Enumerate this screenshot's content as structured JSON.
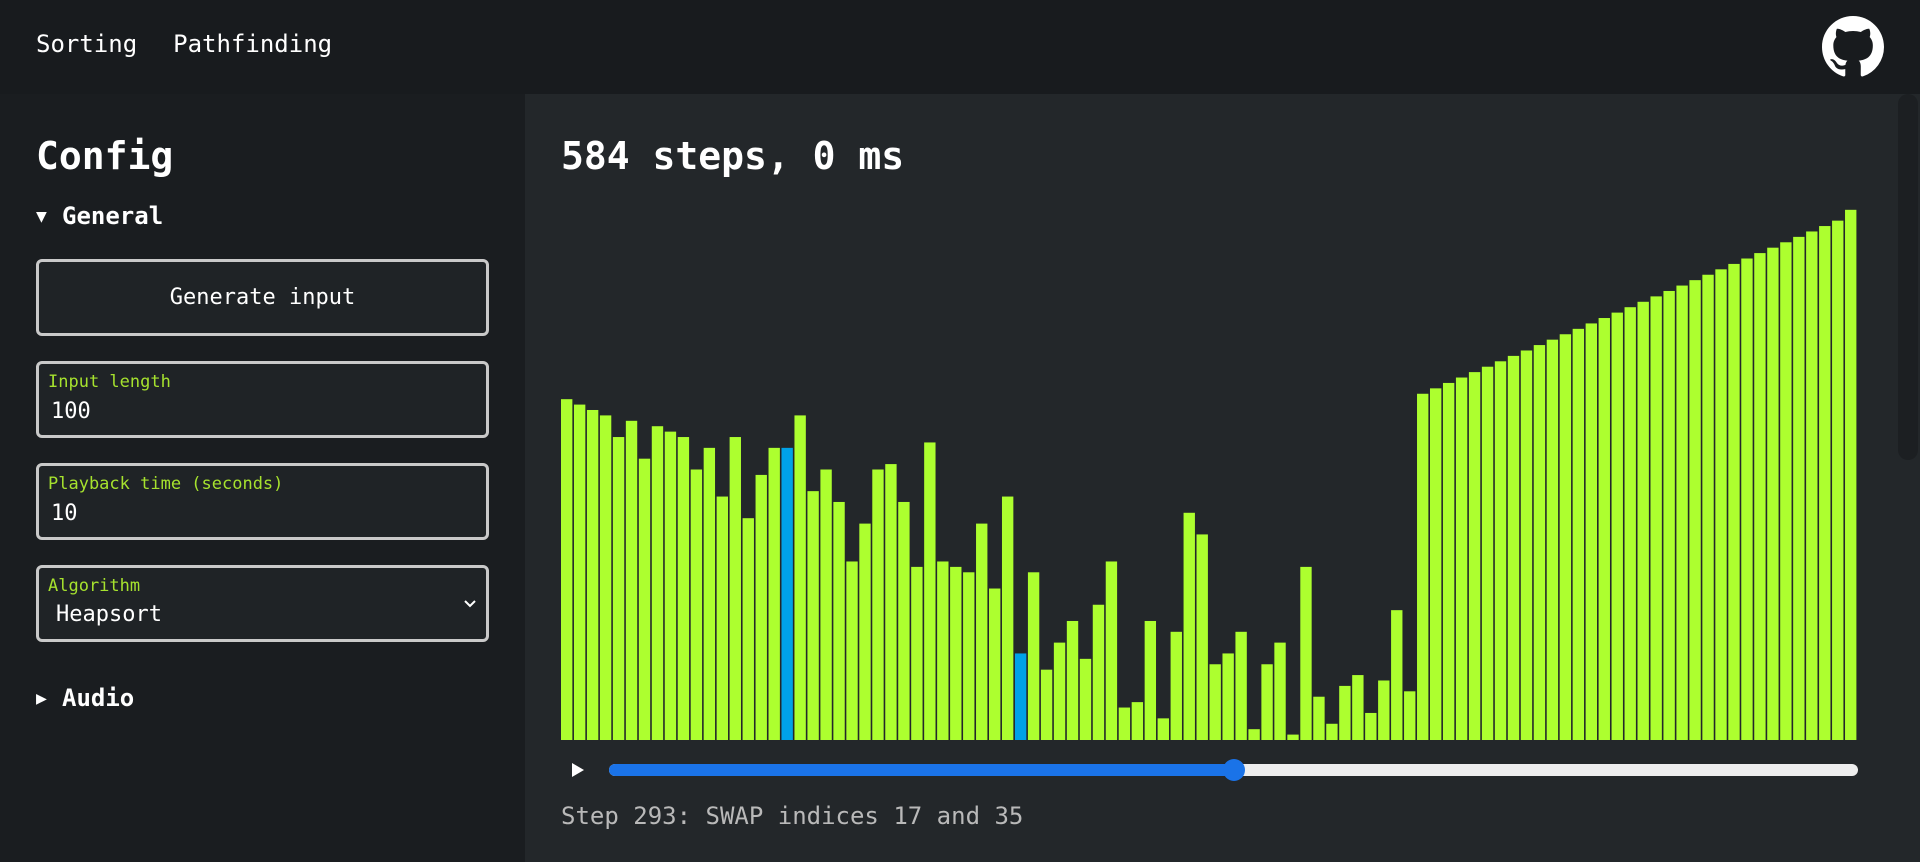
{
  "nav": {
    "items": [
      "Sorting",
      "Pathfinding"
    ],
    "github_icon": "github-icon"
  },
  "sidebar": {
    "title": "Config",
    "general_label": "General",
    "general_expanded": true,
    "generate_button": "Generate input",
    "fields": [
      {
        "label": "Input length",
        "value": "100"
      },
      {
        "label": "Playback time (seconds)",
        "value": "10"
      }
    ],
    "algorithm": {
      "label": "Algorithm",
      "value": "Heapsort"
    },
    "audio_label": "Audio",
    "audio_expanded": false
  },
  "main": {
    "title": "584 steps, 0 ms",
    "status": "Step 293: SWAP indices 17 and 35",
    "progress": 0.5
  },
  "colors": {
    "bar": "#adff2f",
    "highlight": "#00a2e8",
    "accent": "#1a73e8",
    "label": "#a6e22e"
  },
  "chart_data": {
    "type": "bar",
    "highlighted_indices": [
      17,
      35
    ],
    "values": [
      63,
      62,
      61,
      60,
      56,
      59,
      52,
      58,
      57,
      56,
      50,
      54,
      45,
      56,
      41,
      49,
      54,
      54,
      60,
      46,
      50,
      44,
      33,
      40,
      50,
      51,
      44,
      32,
      55,
      33,
      32,
      31,
      40,
      28,
      45,
      16,
      31,
      13,
      18,
      22,
      15,
      25,
      33,
      6,
      7,
      22,
      4,
      20,
      42,
      38,
      14,
      16,
      20,
      2,
      14,
      18,
      1,
      32,
      8,
      3,
      10,
      12,
      5,
      11,
      24,
      9,
      64,
      65,
      66,
      67,
      68,
      69,
      70,
      71,
      72,
      73,
      74,
      75,
      76,
      77,
      78,
      79,
      80,
      81,
      82,
      83,
      84,
      85,
      86,
      87,
      88,
      89,
      90,
      91,
      92,
      93,
      94,
      95,
      96,
      98
    ],
    "ylim": [
      0,
      100
    ]
  }
}
